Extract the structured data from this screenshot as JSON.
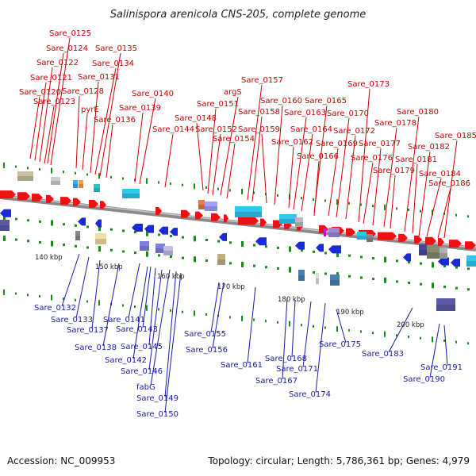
{
  "title": "Salinispora arenicola CNS-205, complete genome",
  "accession": "Accession: NC_009953",
  "summary": "Topology: circular; Length: 5,786,361 bp; Genes: 4,979",
  "colors": {
    "forward_gene": "#ee1111",
    "reverse_gene": "#1a2ad8",
    "backbone": "#8a8a8a",
    "tick": "#1a8a1a",
    "top_label": "#cc0000",
    "bottom_label": "#1a1aa8"
  },
  "kbp_ticks": [
    "140 kbp",
    "150 kbp",
    "160 kbp",
    "170 kbp",
    "180 kbp",
    "190 kbp",
    "200 kbp"
  ],
  "top_genes": [
    "Sare_0120",
    "Sare_0121",
    "Sare_0122",
    "Sare_0123",
    "Sare_0124",
    "Sare_0125",
    "Sare_0128",
    "pyrE",
    "Sare_0131",
    "Sare_0134",
    "Sare_0135",
    "Sare_0136",
    "Sare_0139",
    "Sare_0140",
    "Sare_0144",
    "Sare_0148",
    "Sare_0151",
    "argS",
    "Sare_0152",
    "Sare_0154",
    "Sare_0157",
    "Sare_0158",
    "Sare_0159",
    "Sare_0160",
    "Sare_0162",
    "Sare_0163",
    "Sare_0164",
    "Sare_0165",
    "Sare_0166",
    "Sare_0169",
    "Sare_0170",
    "Sare_0172",
    "Sare_0173",
    "Sare_0176",
    "Sare_0177",
    "Sare_0178",
    "Sare_0179",
    "Sare_0180",
    "Sare_0181",
    "Sare_0182",
    "Sare_0184",
    "Sare_0185",
    "Sare_0186"
  ],
  "bottom_genes": [
    "Sare_0132",
    "Sare_0133",
    "Sare_0137",
    "Sare_0138",
    "Sare_0141",
    "Sare_0142",
    "Sare_0143",
    "Sare_0145",
    "Sare_0146",
    "fabG",
    "Sare_0149",
    "Sare_0150",
    "Sare_0155",
    "Sare_0156",
    "Sare_0161",
    "Sare_0167",
    "Sare_0168",
    "Sare_0171",
    "Sare_0174",
    "Sare_0175",
    "Sare_0183",
    "Sare_0190",
    "Sare_0191"
  ]
}
